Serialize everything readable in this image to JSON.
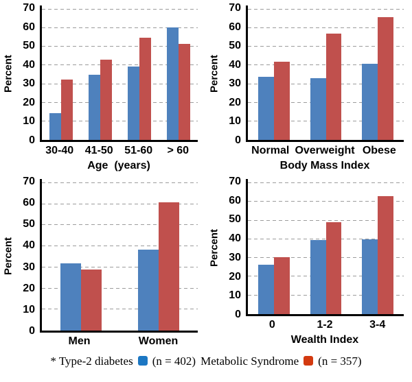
{
  "colors": {
    "bar_series1": "#4e81bd",
    "bar_series2": "#c0504d",
    "gridline": "#9b9b9b",
    "axis": "#000000",
    "legend_swatch_series1": "#1c77c3",
    "legend_swatch_series2": "#d33a10"
  },
  "footnote_legend": {
    "series": [
      {
        "label": "* Type-2 diabetes",
        "count": "(n = 402)",
        "swatch_color": "#1c77c3"
      },
      {
        "label": "Metabolic Syndrome",
        "count": "(n = 357)",
        "swatch_color": "#d33a10"
      }
    ]
  },
  "chart_data": [
    {
      "type": "bar",
      "position": "top-left",
      "title": "",
      "xlabel": "Age  (years)",
      "ylabel": "Percent",
      "ylim": [
        0,
        70
      ],
      "yticks": [
        0,
        10,
        20,
        30,
        40,
        50,
        60,
        70
      ],
      "grid": "horizontal-dashed",
      "legend_position": "none",
      "categories": [
        "30-40",
        "41-50",
        "51-60",
        "> 60"
      ],
      "series": [
        {
          "name": "Type-2 diabetes",
          "values": [
            14.5,
            35,
            39.5,
            60.5
          ]
        },
        {
          "name": "Metabolic Syndrome",
          "values": [
            32.5,
            43,
            55,
            51.5
          ]
        }
      ]
    },
    {
      "type": "bar",
      "position": "top-right",
      "title": "",
      "xlabel": "Body Mass Index",
      "ylabel": "Percent",
      "ylim": [
        0,
        70
      ],
      "yticks": [
        0,
        10,
        20,
        30,
        40,
        50,
        60,
        70
      ],
      "grid": "horizontal-dashed",
      "legend_position": "none",
      "categories": [
        "Normal",
        "Overweight",
        "Obese"
      ],
      "series": [
        {
          "name": "Type-2 diabetes",
          "values": [
            34,
            33,
            41
          ]
        },
        {
          "name": "Metabolic Syndrome",
          "values": [
            42,
            57,
            66
          ]
        }
      ]
    },
    {
      "type": "bar",
      "position": "bottom-left",
      "title": "",
      "xlabel": "",
      "ylabel": "Percent",
      "ylim": [
        0,
        70
      ],
      "yticks": [
        0,
        10,
        20,
        30,
        40,
        50,
        60,
        70
      ],
      "grid": "horizontal-dashed",
      "legend_position": "none",
      "categories": [
        "Men",
        "Women"
      ],
      "series": [
        {
          "name": "Type-2 diabetes",
          "values": [
            32,
            38.5
          ]
        },
        {
          "name": "Metabolic Syndrome",
          "values": [
            29,
            61
          ]
        }
      ]
    },
    {
      "type": "bar",
      "position": "bottom-right",
      "title": "",
      "xlabel": "Wealth Index",
      "ylabel": "Percent",
      "ylim": [
        0,
        70
      ],
      "yticks": [
        0,
        10,
        20,
        30,
        40,
        50,
        60,
        70
      ],
      "grid": "horizontal-dashed",
      "legend_position": "none",
      "categories": [
        "0",
        "1-2",
        "3-4"
      ],
      "series": [
        {
          "name": "Type-2 diabetes",
          "values": [
            26.5,
            39.5,
            40
          ]
        },
        {
          "name": "Metabolic Syndrome",
          "values": [
            30.5,
            49,
            63
          ]
        }
      ]
    }
  ]
}
